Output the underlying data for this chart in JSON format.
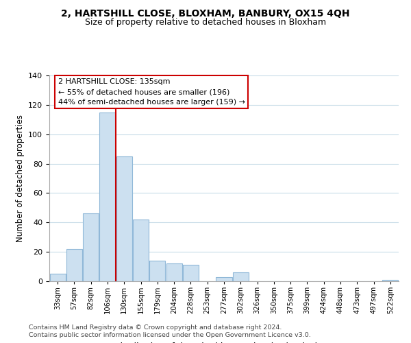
{
  "title": "2, HARTSHILL CLOSE, BLOXHAM, BANBURY, OX15 4QH",
  "subtitle": "Size of property relative to detached houses in Bloxham",
  "xlabel": "Distribution of detached houses by size in Bloxham",
  "ylabel": "Number of detached properties",
  "bar_labels": [
    "33sqm",
    "57sqm",
    "82sqm",
    "106sqm",
    "130sqm",
    "155sqm",
    "179sqm",
    "204sqm",
    "228sqm",
    "253sqm",
    "277sqm",
    "302sqm",
    "326sqm",
    "350sqm",
    "375sqm",
    "399sqm",
    "424sqm",
    "448sqm",
    "473sqm",
    "497sqm",
    "522sqm"
  ],
  "bar_values": [
    5,
    22,
    46,
    115,
    85,
    42,
    14,
    12,
    11,
    0,
    3,
    6,
    0,
    0,
    0,
    0,
    0,
    0,
    0,
    0,
    1
  ],
  "bar_color": "#cce0f0",
  "bar_edge_color": "#90b8d8",
  "marker_line_index": 3,
  "marker_line_color": "#cc0000",
  "annotation_title": "2 HARTSHILL CLOSE: 135sqm",
  "annotation_line1": "← 55% of detached houses are smaller (196)",
  "annotation_line2": "44% of semi-detached houses are larger (159) →",
  "annotation_box_color": "#ffffff",
  "annotation_border_color": "#cc0000",
  "ylim": [
    0,
    140
  ],
  "yticks": [
    0,
    20,
    40,
    60,
    80,
    100,
    120,
    140
  ],
  "footnote1": "Contains HM Land Registry data © Crown copyright and database right 2024.",
  "footnote2": "Contains public sector information licensed under the Open Government Licence v3.0.",
  "background_color": "#ffffff",
  "grid_color": "#c8dce8"
}
